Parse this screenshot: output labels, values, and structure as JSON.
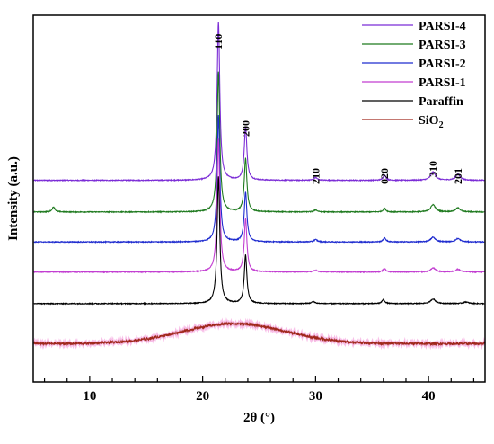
{
  "chart_data": {
    "type": "line",
    "title": "",
    "xlabel": "2θ (°)",
    "ylabel": "Intensity (a.u.)",
    "xlim": [
      5,
      45
    ],
    "xticks": [
      10,
      20,
      30,
      40
    ],
    "yticks_shown": false,
    "legend_position": "top-right",
    "peak_labels": [
      {
        "text": "110",
        "x": 21.4
      },
      {
        "text": "200",
        "x": 23.8
      },
      {
        "text": "210",
        "x": 30.0
      },
      {
        "text": "020",
        "x": 36.1
      },
      {
        "text": "310",
        "x": 40.4
      },
      {
        "text": "201",
        "x": 42.6
      }
    ],
    "series": [
      {
        "name": "PARSI-4",
        "color": "#7b2cd6",
        "baseline": 4.55,
        "peaks": [
          [
            21.4,
            4.75,
            0.14
          ],
          [
            23.8,
            1.6,
            0.14
          ],
          [
            30.0,
            0.08,
            0.18
          ],
          [
            36.1,
            0.15,
            0.15
          ],
          [
            40.4,
            0.25,
            0.25
          ],
          [
            42.6,
            0.18,
            0.25
          ]
        ]
      },
      {
        "name": "PARSI-3",
        "color": "#1f7a1f",
        "baseline": 3.6,
        "peaks": [
          [
            6.8,
            0.15,
            0.15
          ],
          [
            21.4,
            4.2,
            0.14
          ],
          [
            23.8,
            1.6,
            0.14
          ],
          [
            30.0,
            0.06,
            0.18
          ],
          [
            36.1,
            0.1,
            0.15
          ],
          [
            40.4,
            0.22,
            0.25
          ],
          [
            42.6,
            0.12,
            0.25
          ]
        ]
      },
      {
        "name": "PARSI-2",
        "color": "#1f2ccf",
        "baseline": 2.7,
        "peaks": [
          [
            21.4,
            3.8,
            0.14
          ],
          [
            23.8,
            1.5,
            0.14
          ],
          [
            30.0,
            0.07,
            0.18
          ],
          [
            36.1,
            0.12,
            0.15
          ],
          [
            40.4,
            0.14,
            0.25
          ],
          [
            42.6,
            0.1,
            0.25
          ]
        ]
      },
      {
        "name": "PARSI-1",
        "color": "#c23ed1",
        "baseline": 1.8,
        "peaks": [
          [
            21.4,
            4.0,
            0.14
          ],
          [
            23.8,
            1.6,
            0.14
          ],
          [
            30.0,
            0.05,
            0.18
          ],
          [
            36.1,
            0.1,
            0.15
          ],
          [
            40.4,
            0.12,
            0.25
          ],
          [
            42.6,
            0.08,
            0.25
          ]
        ]
      },
      {
        "name": "Paraffin",
        "color": "#000000",
        "baseline": 0.85,
        "peaks": [
          [
            21.4,
            3.8,
            0.14
          ],
          [
            23.8,
            1.45,
            0.14
          ],
          [
            29.8,
            0.06,
            0.18
          ],
          [
            36.0,
            0.12,
            0.15
          ],
          [
            40.4,
            0.14,
            0.25
          ],
          [
            43.3,
            0.05,
            0.25
          ]
        ]
      },
      {
        "name": "SiO2",
        "color": "#a0281c",
        "baseline": -0.35,
        "hump": {
          "center": 22.8,
          "height": 0.6,
          "width": 6.5
        },
        "noise": 0.07
      }
    ],
    "ylim": [
      -1.5,
      9.5
    ]
  }
}
